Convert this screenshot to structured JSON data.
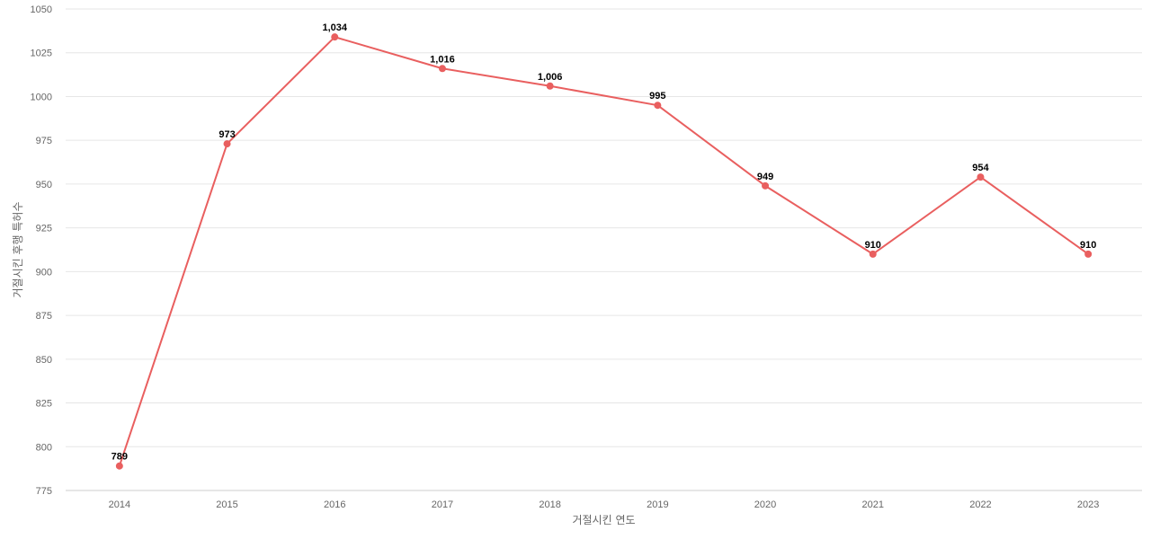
{
  "chart_data": {
    "type": "line",
    "categories": [
      "2014",
      "2015",
      "2016",
      "2017",
      "2018",
      "2019",
      "2020",
      "2021",
      "2022",
      "2023"
    ],
    "series": [
      {
        "values": [
          789,
          973,
          1034,
          1016,
          1006,
          995,
          949,
          910,
          954,
          910
        ],
        "data_labels": [
          "789",
          "973",
          "1,034",
          "1,016",
          "1,006",
          "995",
          "949",
          "910",
          "954",
          "910"
        ],
        "color": "#e95f5f"
      }
    ],
    "xlabel": "거절시킨 연도",
    "ylabel": "거절시킨 후행 특허수",
    "ylim": [
      775,
      1050
    ],
    "yticks": [
      "775",
      "800",
      "825",
      "850",
      "875",
      "900",
      "925",
      "950",
      "975",
      "1000",
      "1025",
      "1050"
    ],
    "grid": true,
    "legend": "none"
  }
}
